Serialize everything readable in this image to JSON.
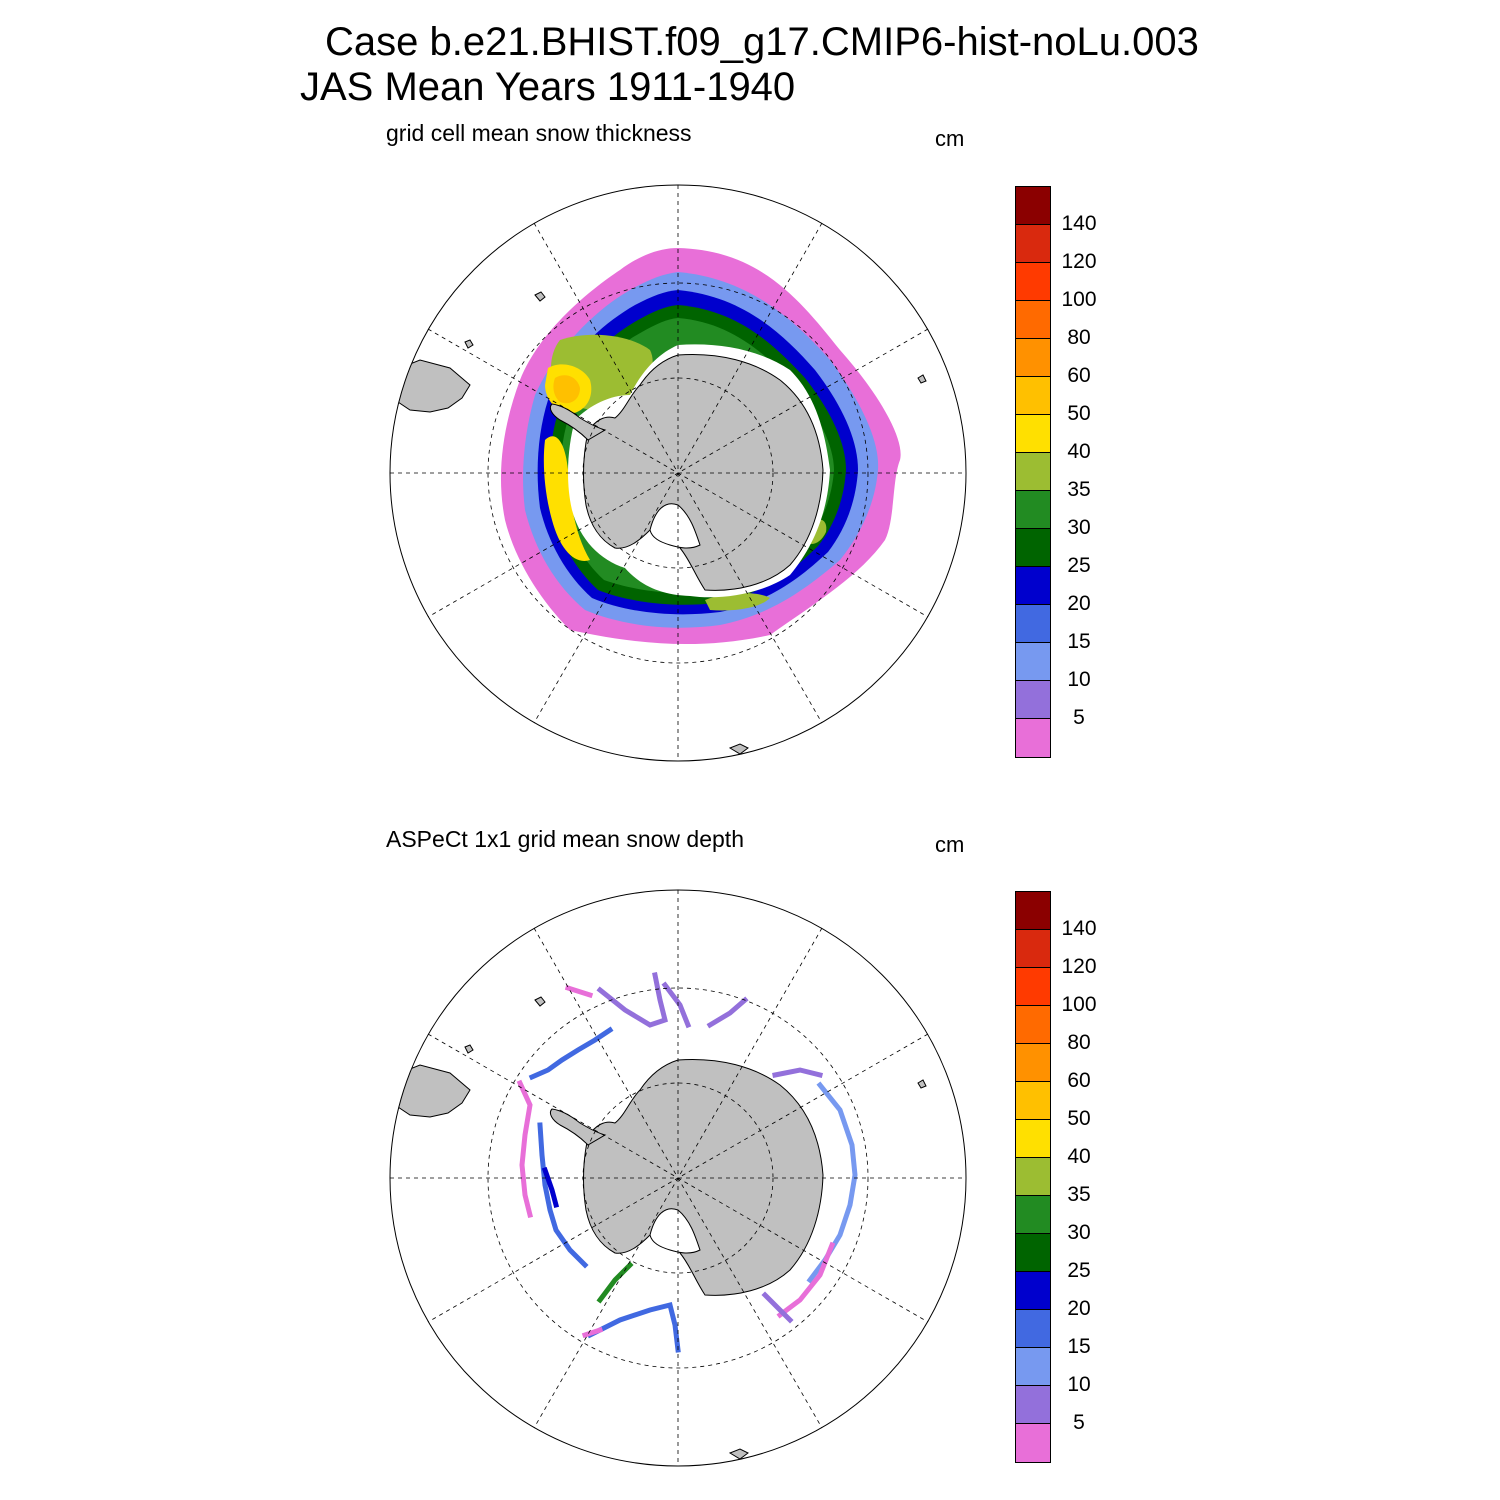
{
  "header": {
    "title_line1": "Case b.e21.BHIST.f09_g17.CMIP6-hist-noLu.003",
    "title_line2": "JAS Mean   Years 1911-1940"
  },
  "colorbar": {
    "levels": [
      "140",
      "120",
      "100",
      "80",
      "60",
      "50",
      "40",
      "35",
      "30",
      "25",
      "20",
      "15",
      "10",
      "5"
    ],
    "colors": [
      "#8B0000",
      "#D9290E",
      "#FF3A00",
      "#FF6A00",
      "#FF9100",
      "#FFC000",
      "#FFE000",
      "#9CBD32",
      "#228B22",
      "#006400",
      "#0000CD",
      "#4169E1",
      "#7799F0",
      "#9370DB",
      "#E86FD8"
    ]
  },
  "panels": [
    {
      "subtitle": "grid cell mean snow thickness",
      "units": "cm"
    },
    {
      "subtitle": "ASPeCt 1x1 grid mean snow depth",
      "units": "cm"
    }
  ],
  "colors": {
    "land": "#C0C0C0",
    "coastline": "#000000",
    "grid": "#000000"
  }
}
